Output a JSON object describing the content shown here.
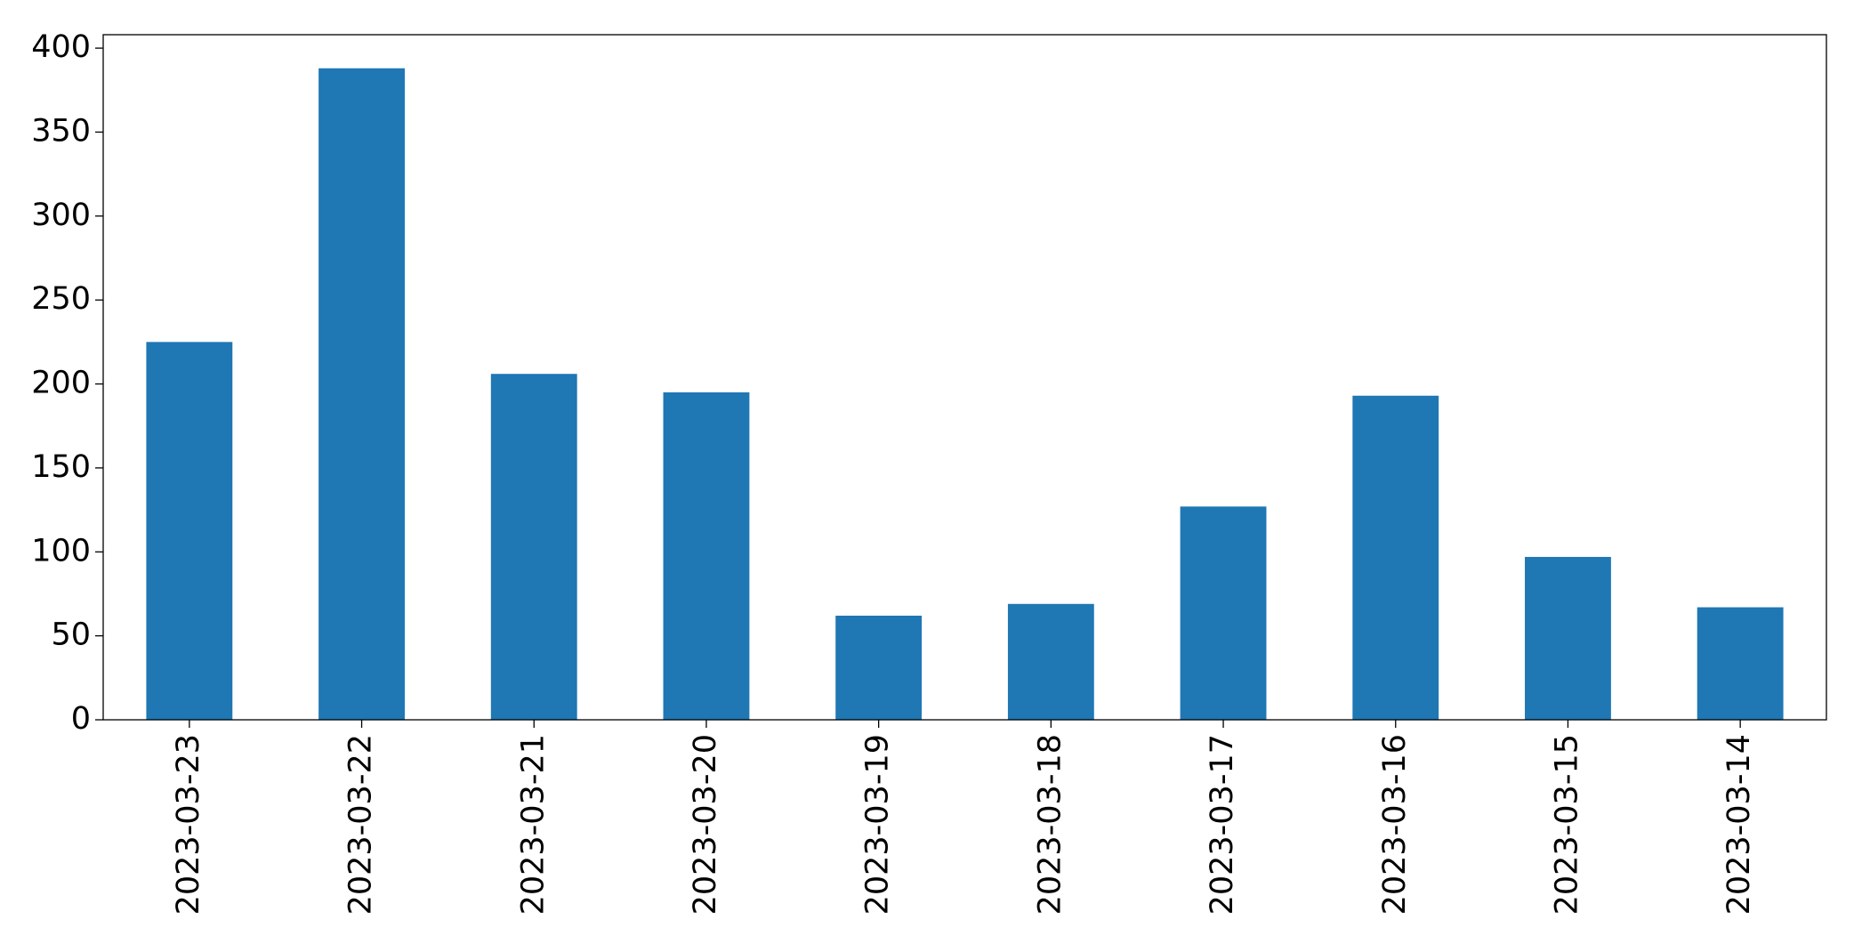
{
  "chart_data": {
    "type": "bar",
    "categories": [
      "2023-03-23",
      "2023-03-22",
      "2023-03-21",
      "2023-03-20",
      "2023-03-19",
      "2023-03-18",
      "2023-03-17",
      "2023-03-16",
      "2023-03-15",
      "2023-03-14"
    ],
    "values": [
      225,
      388,
      206,
      195,
      62,
      69,
      127,
      193,
      97,
      67
    ],
    "color": "#1f77b4",
    "ylim": [
      0,
      408
    ],
    "yticks": [
      0,
      50,
      100,
      150,
      200,
      250,
      300,
      350,
      400
    ],
    "grid": false
  }
}
